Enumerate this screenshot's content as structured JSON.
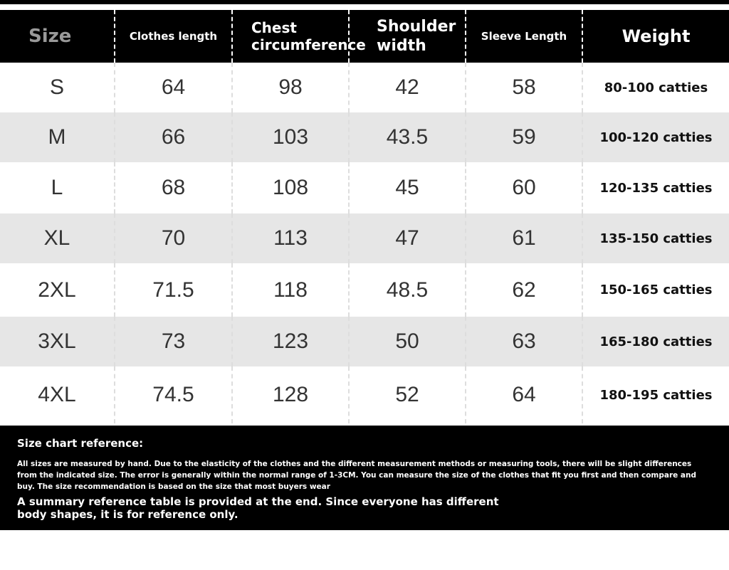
{
  "table": {
    "header": [
      "Size",
      "Clothes length",
      "Chest circumference",
      "Shoulder width",
      "Sleeve Length",
      "Weight"
    ],
    "rows": [
      [
        "S",
        64,
        98,
        42,
        58,
        "80-100 catties"
      ],
      [
        "M",
        66,
        103,
        43.5,
        59,
        "100-120 catties"
      ],
      [
        "L",
        68,
        108,
        45,
        60,
        "120-135 catties"
      ],
      [
        "XL",
        70,
        113,
        47,
        61,
        "135-150 catties"
      ],
      [
        "2XL",
        71.5,
        118,
        48.5,
        62,
        "150-165 catties"
      ],
      [
        "3XL",
        73,
        123,
        50,
        63,
        "165-180 catties"
      ],
      [
        "4XL",
        74.5,
        128,
        52,
        64,
        "180-195 catties"
      ]
    ]
  },
  "footer": {
    "title": "Size chart reference:",
    "body": "All sizes are measured by hand. Due to the elasticity of the clothes and the different measurement methods or measuring tools, there will be slight differences from the indicated size. The error is generally within the normal range of 1-3CM. You can measure the size of the clothes that fit you first and then compare and buy. The size recommendation is based on the size that most buyers wear",
    "summary": "A summary reference table is provided at the end. Since everyone has different body shapes, it is for reference only."
  }
}
